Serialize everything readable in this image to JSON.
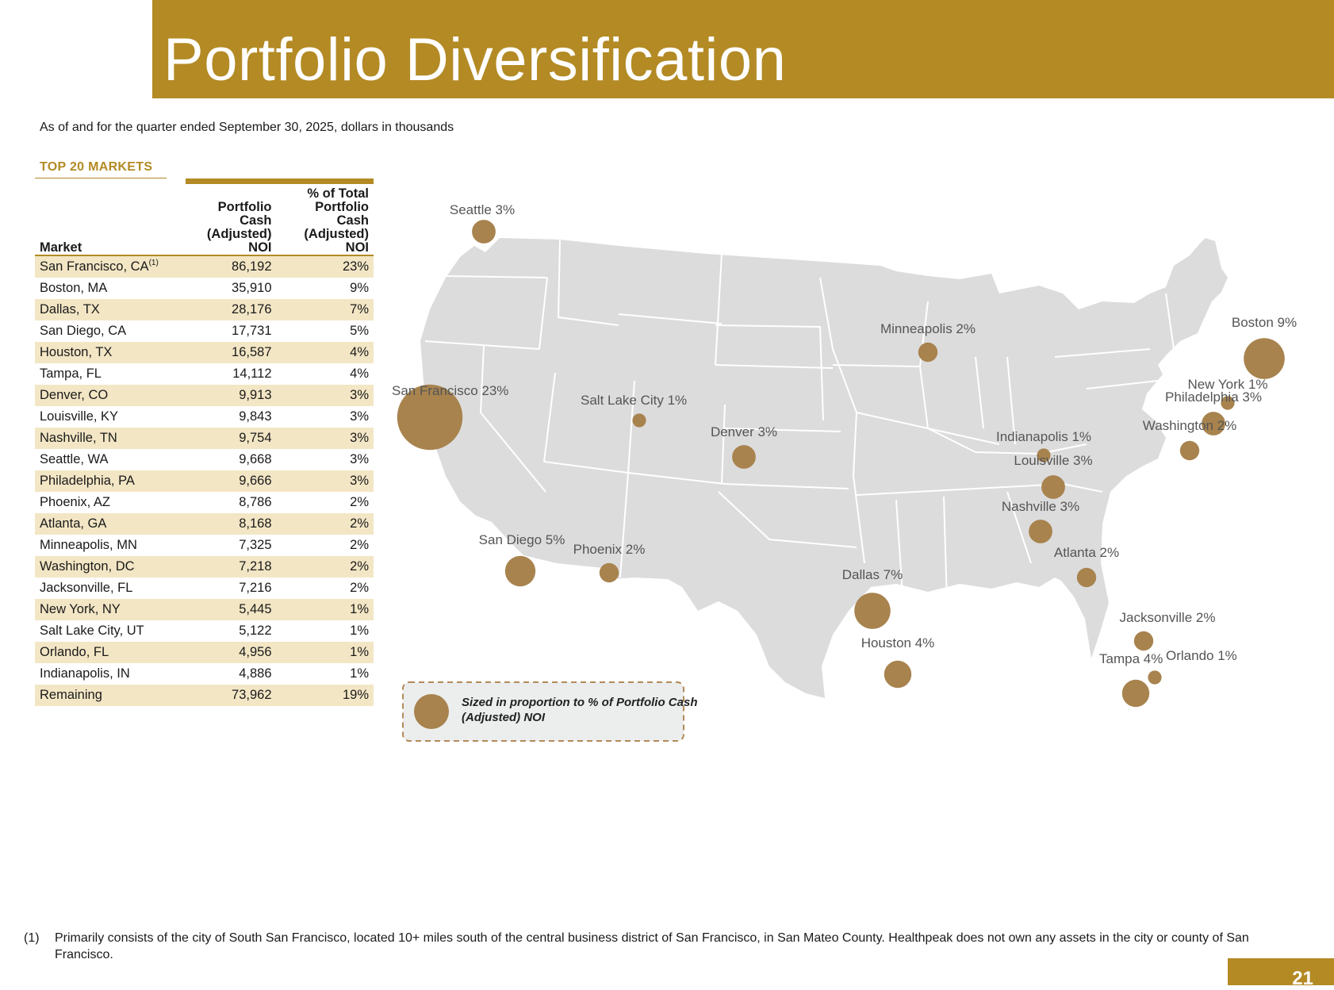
{
  "header": {
    "title": "Portfolio Diversification"
  },
  "subtitle": "As of and for the quarter ended September 30, 2025, dollars in thousands",
  "table": {
    "title": "TOP 20 MARKETS",
    "columns": {
      "market": "Market",
      "noi": [
        "Portfolio",
        "Cash",
        "(Adjusted)",
        "NOI"
      ],
      "pct": [
        "% of Total",
        "Portfolio",
        "Cash",
        "(Adjusted)",
        "NOI"
      ]
    },
    "rows": [
      {
        "market": "San Francisco, CA",
        "note": "(1)",
        "noi": "86,192",
        "pct": "23%"
      },
      {
        "market": "Boston, MA",
        "note": "",
        "noi": "35,910",
        "pct": "9%"
      },
      {
        "market": "Dallas, TX",
        "note": "",
        "noi": "28,176",
        "pct": "7%"
      },
      {
        "market": "San Diego, CA",
        "note": "",
        "noi": "17,731",
        "pct": "5%"
      },
      {
        "market": "Houston, TX",
        "note": "",
        "noi": "16,587",
        "pct": "4%"
      },
      {
        "market": "Tampa, FL",
        "note": "",
        "noi": "14,112",
        "pct": "4%"
      },
      {
        "market": "Denver, CO",
        "note": "",
        "noi": "9,913",
        "pct": "3%"
      },
      {
        "market": "Louisville, KY",
        "note": "",
        "noi": "9,843",
        "pct": "3%"
      },
      {
        "market": "Nashville, TN",
        "note": "",
        "noi": "9,754",
        "pct": "3%"
      },
      {
        "market": "Seattle, WA",
        "note": "",
        "noi": "9,668",
        "pct": "3%"
      },
      {
        "market": "Philadelphia, PA",
        "note": "",
        "noi": "9,666",
        "pct": "3%"
      },
      {
        "market": "Phoenix, AZ",
        "note": "",
        "noi": "8,786",
        "pct": "2%"
      },
      {
        "market": "Atlanta, GA",
        "note": "",
        "noi": "8,168",
        "pct": "2%"
      },
      {
        "market": "Minneapolis, MN",
        "note": "",
        "noi": "7,325",
        "pct": "2%"
      },
      {
        "market": "Washington, DC",
        "note": "",
        "noi": "7,218",
        "pct": "2%"
      },
      {
        "market": "Jacksonville, FL",
        "note": "",
        "noi": "7,216",
        "pct": "2%"
      },
      {
        "market": "New York, NY",
        "note": "",
        "noi": "5,445",
        "pct": "1%"
      },
      {
        "market": "Salt Lake City, UT",
        "note": "",
        "noi": "5,122",
        "pct": "1%"
      },
      {
        "market": "Orlando, FL",
        "note": "",
        "noi": "4,956",
        "pct": "1%"
      },
      {
        "market": "Indianapolis, IN",
        "note": "",
        "noi": "4,886",
        "pct": "1%"
      },
      {
        "market": "Remaining",
        "note": "",
        "noi": "73,962",
        "pct": "19%"
      }
    ]
  },
  "map": {
    "colors": {
      "land": "#dcdcdc",
      "border": "#ffffff",
      "bubble": "#a8834e",
      "label": "#555555",
      "legend_fill": "#eceded",
      "legend_border": "#b38a5a"
    },
    "cities": [
      {
        "label": "Seattle 3%",
        "pct": 3
      },
      {
        "label": "San Francisco 23%",
        "pct": 23
      },
      {
        "label": "Salt Lake City 1%",
        "pct": 1
      },
      {
        "label": "Denver 3%",
        "pct": 3
      },
      {
        "label": "San Diego 5%",
        "pct": 5
      },
      {
        "label": "Phoenix 2%",
        "pct": 2
      },
      {
        "label": "Minneapolis 2%",
        "pct": 2
      },
      {
        "label": "Dallas 7%",
        "pct": 7
      },
      {
        "label": "Houston 4%",
        "pct": 4
      },
      {
        "label": "Indianapolis 1%",
        "pct": 1
      },
      {
        "label": "Louisville 3%",
        "pct": 3
      },
      {
        "label": "Nashville 3%",
        "pct": 3
      },
      {
        "label": "Atlanta 2%",
        "pct": 2
      },
      {
        "label": "Jacksonville 2%",
        "pct": 2
      },
      {
        "label": "Orlando 1%",
        "pct": 1
      },
      {
        "label": "Tampa 4%",
        "pct": 4
      },
      {
        "label": "Boston 9%",
        "pct": 9
      },
      {
        "label": "New York 1%",
        "pct": 1
      },
      {
        "label": "Philadelphia 3%",
        "pct": 3
      },
      {
        "label": "Washington 2%",
        "pct": 2
      }
    ],
    "legend": {
      "line1": "Sized in proportion to % of Portfolio Cash",
      "line2": "(Adjusted) NOI"
    }
  },
  "footnote": {
    "marker": "(1)",
    "text": "Primarily consists of the city of South San Francisco, located 10+ miles south of the central business district of San Francisco, in San Mateo County. Healthpeak does not own any assets in the city or county of San Francisco."
  },
  "page_number": "21"
}
